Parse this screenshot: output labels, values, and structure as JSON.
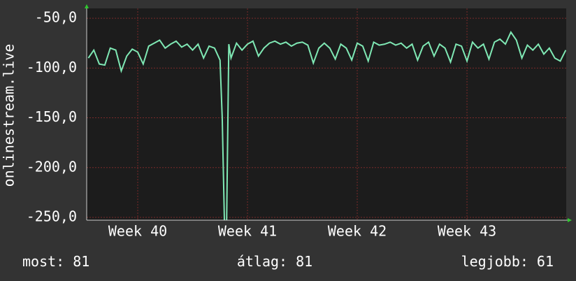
{
  "chart_data": {
    "type": "line",
    "y_label": "onlinestream.live",
    "x": [
      39.55,
      39.6,
      39.65,
      39.7,
      39.75,
      39.8,
      39.85,
      39.9,
      39.95,
      40,
      40.05,
      40.1,
      40.15,
      40.2,
      40.25,
      40.3,
      40.35,
      40.4,
      40.45,
      40.5,
      40.55,
      40.6,
      40.65,
      40.7,
      40.75,
      40.77,
      40.79,
      40.81,
      40.83,
      40.85,
      40.9,
      40.95,
      41,
      41.05,
      41.1,
      41.15,
      41.2,
      41.25,
      41.3,
      41.35,
      41.4,
      41.45,
      41.5,
      41.55,
      41.6,
      41.65,
      41.7,
      41.75,
      41.8,
      41.85,
      41.9,
      41.95,
      42,
      42.05,
      42.1,
      42.15,
      42.2,
      42.25,
      42.3,
      42.35,
      42.4,
      42.45,
      42.5,
      42.55,
      42.6,
      42.65,
      42.7,
      42.75,
      42.8,
      42.85,
      42.9,
      42.95,
      43,
      43.05,
      43.1,
      43.15,
      43.2,
      43.25,
      43.3,
      43.35,
      43.4,
      43.45,
      43.5,
      43.55,
      43.6,
      43.65,
      43.7,
      43.75,
      43.8,
      43.85,
      43.9
    ],
    "series": [
      {
        "color": "#7fe8b4",
        "values": [
          -90,
          -82,
          -96,
          -97,
          -80,
          -82,
          -103,
          -88,
          -81,
          -84,
          -96,
          -78,
          -75,
          -72,
          -80,
          -76,
          -73,
          -79,
          -76,
          -82,
          -76,
          -90,
          -78,
          -80,
          -92,
          -150,
          -255,
          -255,
          -76,
          -90,
          -75,
          -82,
          -76,
          -73,
          -88,
          -80,
          -75,
          -73,
          -76,
          -74,
          -78,
          -75,
          -74,
          -77,
          -95,
          -80,
          -75,
          -80,
          -91,
          -76,
          -80,
          -92,
          -75,
          -78,
          -93,
          -74,
          -77,
          -76,
          -74,
          -77,
          -75,
          -80,
          -76,
          -92,
          -78,
          -74,
          -88,
          -76,
          -80,
          -94,
          -76,
          -78,
          -93,
          -74,
          -80,
          -76,
          -91,
          -74,
          -71,
          -76,
          -64,
          -72,
          -90,
          -77,
          -82,
          -76,
          -86,
          -80,
          -90,
          -93,
          -82
        ]
      }
    ],
    "xlim": [
      39.535,
      43.904
    ],
    "xticks": [
      {
        "value": 40,
        "label": "Week 40"
      },
      {
        "value": 41,
        "label": "Week 41"
      },
      {
        "value": 42,
        "label": "Week 42"
      },
      {
        "value": 43,
        "label": "Week 43"
      }
    ],
    "ylim": [
      -252.8,
      -40.1
    ],
    "yticks": [
      {
        "value": -50,
        "label": "-50,0"
      },
      {
        "value": -100,
        "label": "-100,0"
      },
      {
        "value": -150,
        "label": "-150,0"
      },
      {
        "value": -200,
        "label": "-200,0"
      },
      {
        "value": -250,
        "label": "-250,0"
      }
    ],
    "grid": true,
    "stats": [
      {
        "label": "most:",
        "value": 81
      },
      {
        "label": "átlag:",
        "value": 81
      },
      {
        "label": "legjobb:",
        "value": 61
      }
    ]
  }
}
